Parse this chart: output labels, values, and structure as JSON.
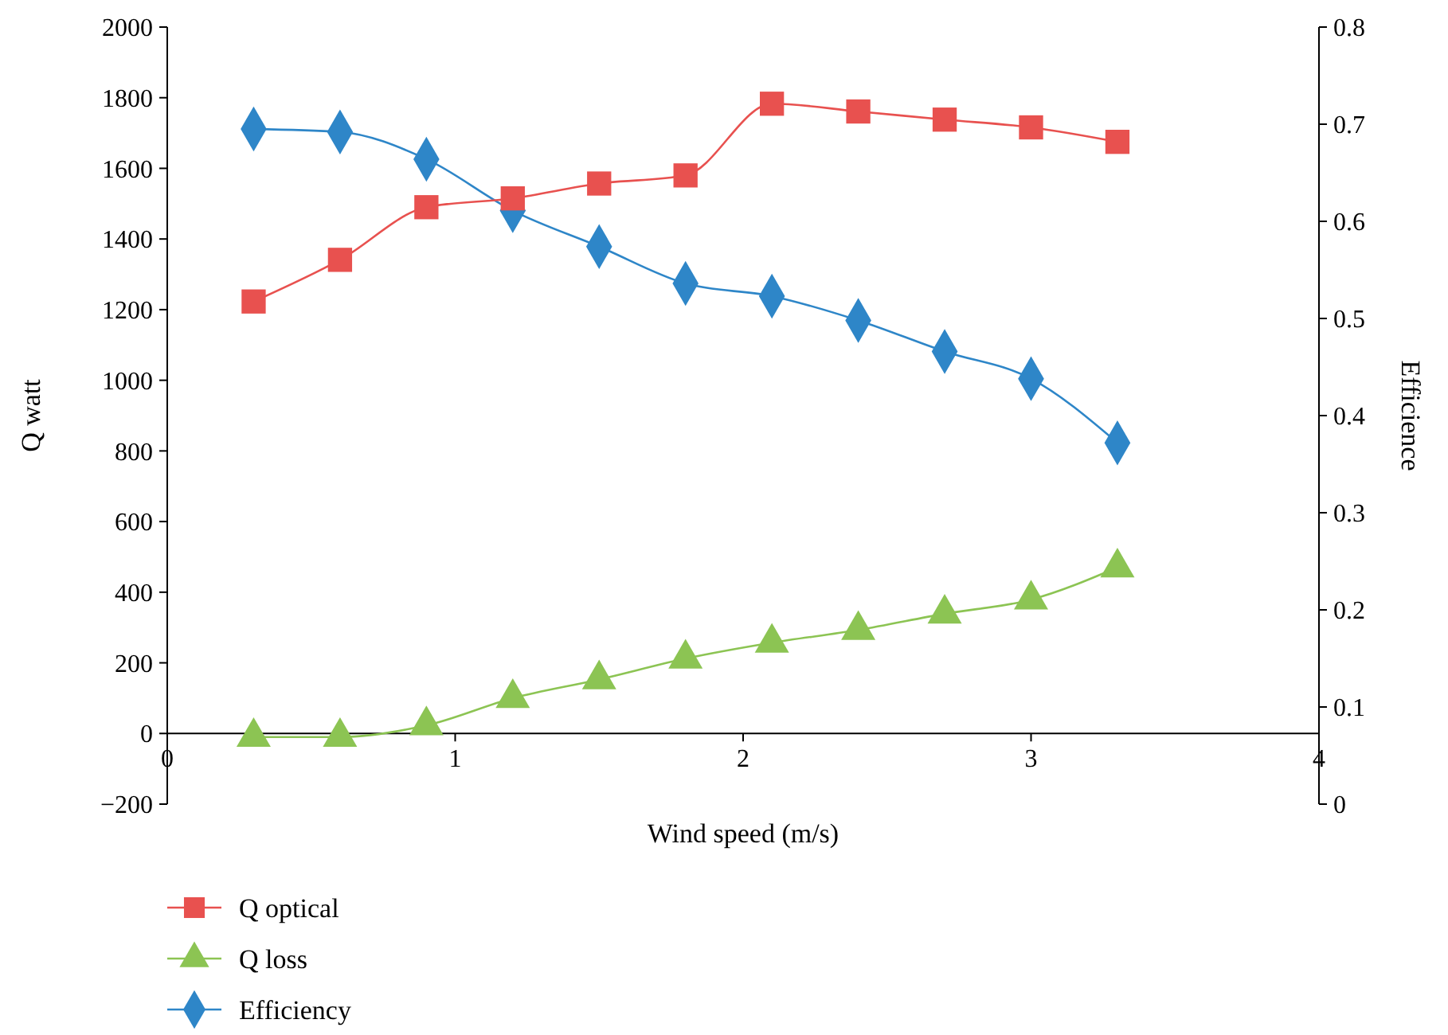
{
  "chart_data": {
    "type": "line",
    "xlabel": "Wind speed (m/s)",
    "ylabel": "Q watt",
    "y2label": "Efficience",
    "x": [
      0.3,
      0.6,
      0.9,
      1.2,
      1.5,
      1.8,
      2.1,
      2.4,
      2.7,
      3.0,
      3.3
    ],
    "xlim": [
      0,
      4
    ],
    "xticks": [
      0,
      1,
      2,
      3,
      4
    ],
    "ylim": [
      -200,
      2000
    ],
    "yticks": [
      -200,
      0,
      200,
      400,
      600,
      800,
      1000,
      1200,
      1400,
      1600,
      1800,
      2000
    ],
    "y2lim": [
      0,
      0.8
    ],
    "y2ticks": [
      0,
      0.1,
      0.2,
      0.3,
      0.4,
      0.5,
      0.6,
      0.7,
      0.8
    ],
    "grid": false,
    "legend": "bottom left",
    "line_style": "solid",
    "series": [
      {
        "name": "Q optical",
        "color": "#e8514f",
        "marker": "square",
        "values": [
          1223,
          1341,
          1490,
          1515,
          1557,
          1580,
          1783,
          1761,
          1738,
          1716,
          1675
        ]
      },
      {
        "name": "Q loss",
        "color": "#8cc453",
        "marker": "triangle",
        "values": [
          -10,
          -10,
          23,
          100,
          153,
          212,
          257,
          293,
          339,
          379,
          470
        ]
      },
      {
        "name": "Efficiency",
        "color": "#2e86c8",
        "marker": "diamond",
        "axis": "y2",
        "values": [
          0.695,
          0.692,
          0.664,
          0.611,
          0.574,
          0.536,
          0.523,
          0.498,
          0.466,
          0.438,
          0.372
        ]
      }
    ]
  }
}
